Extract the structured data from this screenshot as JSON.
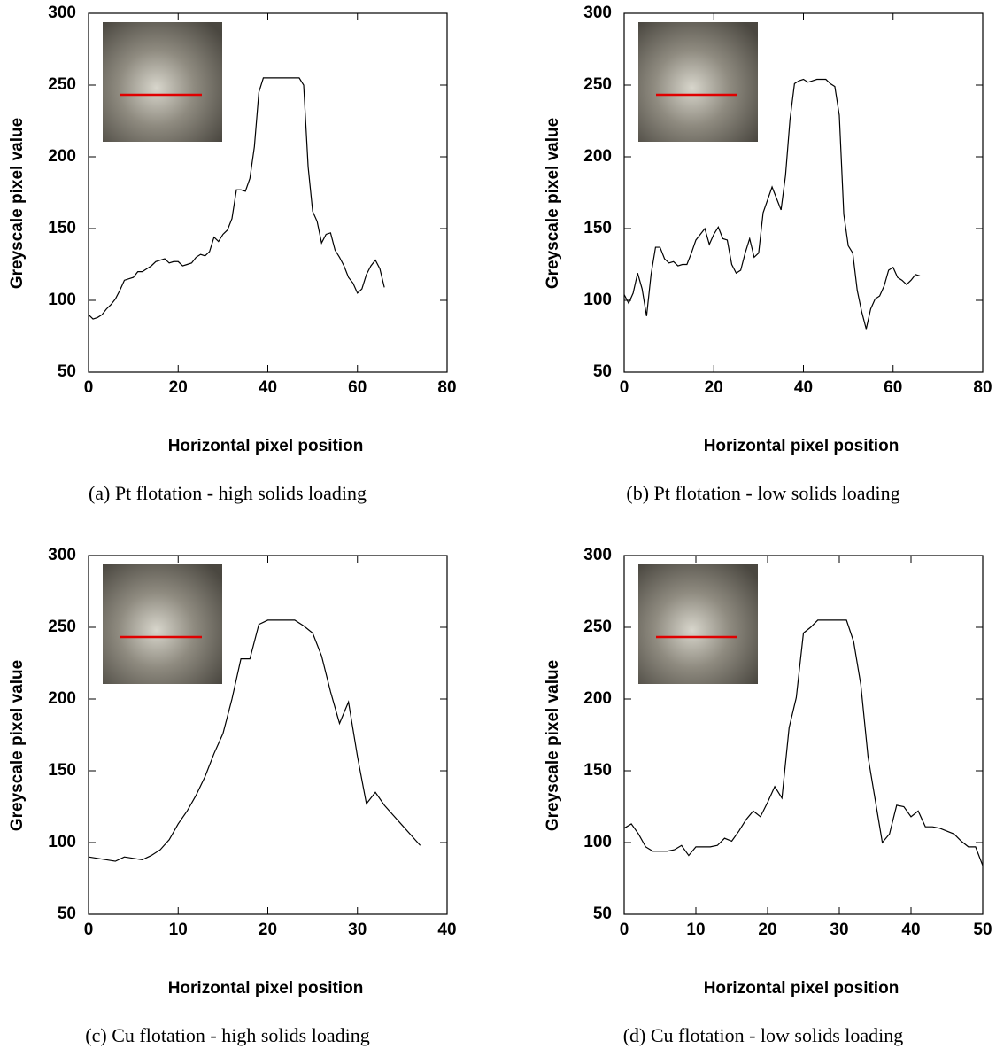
{
  "chart_data": [
    {
      "type": "line",
      "caption": "(a) Pt flotation - high solids loading",
      "xlabel": "Horizontal pixel position",
      "ylabel": "Greyscale pixel value",
      "x": [
        0,
        1,
        2,
        3,
        4,
        5,
        6,
        7,
        8,
        9,
        10,
        11,
        12,
        13,
        14,
        15,
        16,
        17,
        18,
        19,
        20,
        21,
        22,
        23,
        24,
        25,
        26,
        27,
        28,
        29,
        30,
        31,
        32,
        33,
        34,
        35,
        36,
        37,
        38,
        39,
        40,
        41,
        42,
        43,
        44,
        45,
        46,
        47,
        48,
        49,
        50,
        51,
        52,
        53,
        54,
        55,
        56,
        57,
        58,
        59,
        60,
        61,
        62,
        63,
        64,
        65,
        66
      ],
      "values": [
        90,
        87,
        88,
        90,
        94,
        97,
        101,
        107,
        114,
        115,
        116,
        120,
        120,
        122,
        124,
        127,
        128,
        129,
        126,
        127,
        127,
        124,
        125,
        126,
        130,
        132,
        131,
        134,
        144,
        141,
        146,
        149,
        157,
        177,
        177,
        176,
        185,
        207,
        245,
        255,
        255,
        255,
        255,
        255,
        255,
        255,
        255,
        255,
        250,
        193,
        162,
        155,
        140,
        146,
        147,
        135,
        130,
        124,
        116,
        112,
        105,
        108,
        118,
        124,
        128,
        122,
        109
      ],
      "color": "#000000",
      "xlim": [
        0,
        80
      ],
      "xticks": [
        0,
        20,
        40,
        60,
        80
      ],
      "ylim": [
        50,
        300
      ],
      "yticks": [
        50,
        100,
        150,
        200,
        250,
        300
      ]
    },
    {
      "type": "line",
      "caption": "(b) Pt flotation - low solids loading",
      "xlabel": "Horizontal pixel position",
      "ylabel": "Greyscale pixel value",
      "x": [
        0,
        1,
        2,
        3,
        4,
        5,
        6,
        7,
        8,
        9,
        10,
        11,
        12,
        13,
        14,
        15,
        16,
        17,
        18,
        19,
        20,
        21,
        22,
        23,
        24,
        25,
        26,
        27,
        28,
        29,
        30,
        31,
        32,
        33,
        34,
        35,
        36,
        37,
        38,
        39,
        40,
        41,
        42,
        43,
        44,
        45,
        46,
        47,
        48,
        49,
        50,
        51,
        52,
        53,
        54,
        55,
        56,
        57,
        58,
        59,
        60,
        61,
        62,
        63,
        64,
        65,
        66
      ],
      "values": [
        104,
        98,
        105,
        119,
        108,
        89,
        118,
        137,
        137,
        129,
        126,
        127,
        124,
        125,
        125,
        133,
        142,
        146,
        150,
        139,
        146,
        151,
        143,
        142,
        125,
        119,
        121,
        133,
        143,
        130,
        133,
        161,
        170,
        179,
        171,
        163,
        187,
        226,
        251,
        253,
        254,
        252,
        253,
        254,
        254,
        254,
        251,
        249,
        229,
        160,
        138,
        133,
        107,
        92,
        80,
        94,
        101,
        103,
        110,
        121,
        123,
        116,
        114,
        111,
        114,
        118,
        117
      ],
      "color": "#000000",
      "xlim": [
        0,
        80
      ],
      "xticks": [
        0,
        20,
        40,
        60,
        80
      ],
      "ylim": [
        50,
        300
      ],
      "yticks": [
        50,
        100,
        150,
        200,
        250,
        300
      ]
    },
    {
      "type": "line",
      "caption": "(c) Cu flotation - high solids loading",
      "xlabel": "Horizontal pixel position",
      "ylabel": "Greyscale pixel value",
      "x": [
        0,
        1,
        2,
        3,
        4,
        5,
        6,
        7,
        8,
        9,
        10,
        11,
        12,
        13,
        14,
        15,
        16,
        17,
        18,
        19,
        20,
        21,
        22,
        23,
        24,
        25,
        26,
        27,
        28,
        29,
        30,
        31,
        32,
        33,
        34,
        35,
        36,
        37
      ],
      "values": [
        90,
        89,
        88,
        87,
        90,
        89,
        88,
        91,
        95,
        102,
        113,
        122,
        133,
        146,
        162,
        176,
        200,
        228,
        228,
        252,
        255,
        255,
        255,
        255,
        251,
        246,
        230,
        205,
        183,
        198,
        160,
        127,
        135,
        126,
        119,
        112,
        105,
        98
      ],
      "color": "#000000",
      "xlim": [
        0,
        40
      ],
      "xticks": [
        0,
        10,
        20,
        30,
        40
      ],
      "ylim": [
        50,
        300
      ],
      "yticks": [
        50,
        100,
        150,
        200,
        250,
        300
      ]
    },
    {
      "type": "line",
      "caption": "(d) Cu flotation - low solids loading",
      "xlabel": "Horizontal pixel position",
      "ylabel": "Greyscale pixel value",
      "x": [
        0,
        1,
        2,
        3,
        4,
        5,
        6,
        7,
        8,
        9,
        10,
        11,
        12,
        13,
        14,
        15,
        16,
        17,
        18,
        19,
        20,
        21,
        22,
        23,
        24,
        25,
        26,
        27,
        28,
        29,
        30,
        31,
        32,
        33,
        34,
        35,
        36,
        37,
        38,
        39,
        40,
        41,
        42,
        43,
        44,
        45,
        46,
        47,
        48,
        49,
        50
      ],
      "values": [
        110,
        113,
        106,
        97,
        94,
        94,
        94,
        95,
        98,
        91,
        97,
        97,
        97,
        98,
        103,
        101,
        108,
        116,
        122,
        118,
        128,
        139,
        131,
        180,
        201,
        246,
        250,
        255,
        255,
        255,
        255,
        255,
        240,
        210,
        160,
        130,
        100,
        106,
        126,
        125,
        118,
        122,
        111,
        111,
        110,
        108,
        106,
        101,
        97,
        97,
        84
      ],
      "color": "#000000",
      "xlim": [
        0,
        50
      ],
      "xticks": [
        0,
        10,
        20,
        30,
        40,
        50
      ],
      "ylim": [
        50,
        300
      ],
      "yticks": [
        50,
        100,
        150,
        200,
        250,
        300
      ]
    }
  ]
}
